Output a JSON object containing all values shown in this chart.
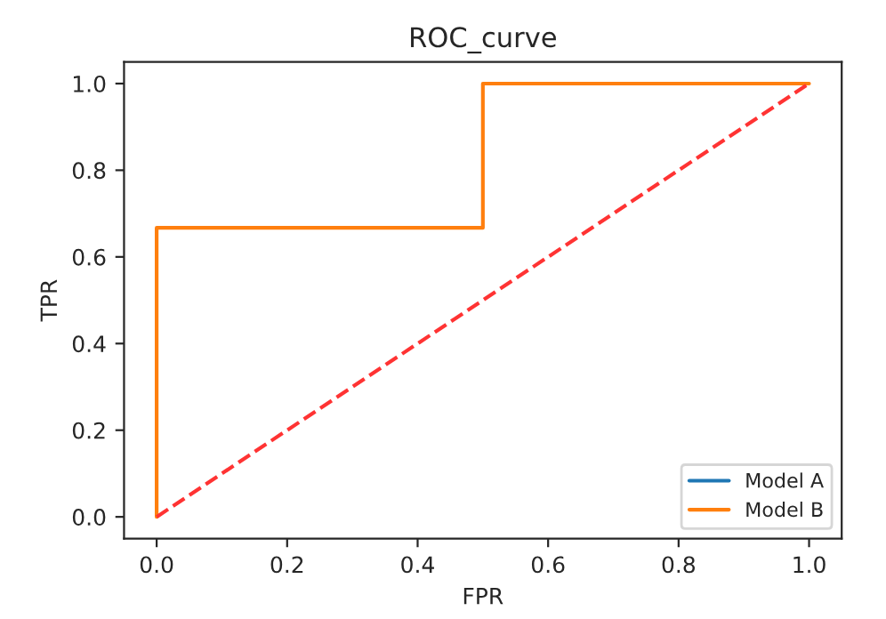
{
  "chart_data": {
    "type": "line",
    "title": "ROC_curve",
    "xlabel": "FPR",
    "ylabel": "TPR",
    "series": [
      {
        "name": "Model A",
        "color": "#1f77b4"
      },
      {
        "name": "Model B",
        "color": "#ff7f0e",
        "x": [
          0,
          0,
          0.5,
          0.5,
          1
        ],
        "values": [
          0,
          0.667,
          0.667,
          1,
          1
        ]
      },
      {
        "color": "#ff3333",
        "line_style": "dashed",
        "x": [
          0,
          1
        ],
        "values": [
          0,
          1
        ]
      }
    ],
    "xlim": [
      -0.05,
      1.05
    ],
    "ylim": [
      -0.05,
      1.05
    ],
    "xticks": [
      {
        "value": 0,
        "label": "0.0"
      },
      {
        "value": 0.2,
        "label": "0.2"
      },
      {
        "value": 0.4,
        "label": "0.4"
      },
      {
        "value": 0.6,
        "label": "0.6"
      },
      {
        "value": 0.8,
        "label": "0.8"
      },
      {
        "value": 1,
        "label": "1.0"
      }
    ],
    "yticks": [
      {
        "value": 0,
        "label": "0.0"
      },
      {
        "value": 0.2,
        "label": "0.2"
      },
      {
        "value": 0.4,
        "label": "0.4"
      },
      {
        "value": 0.6,
        "label": "0.6"
      },
      {
        "value": 0.8,
        "label": "0.8"
      },
      {
        "value": 1,
        "label": "1.0"
      }
    ],
    "grid": false,
    "legend": "bottom right"
  }
}
